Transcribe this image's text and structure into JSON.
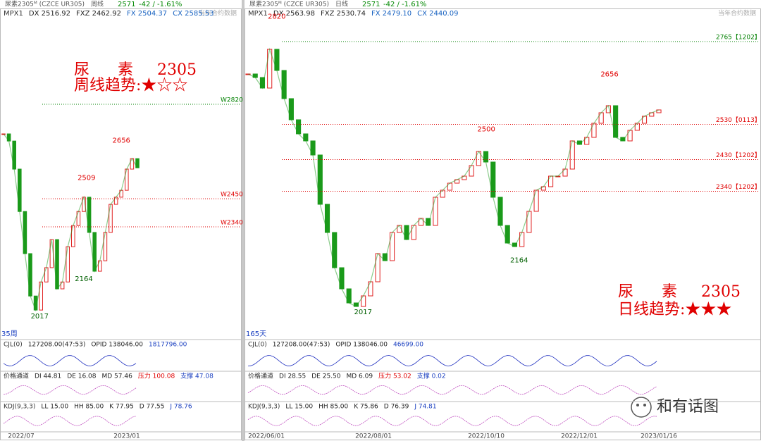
{
  "left": {
    "header": {
      "name": "尿素2305ᴹ (CZCE UR305)",
      "period": "周线",
      "last": "2571",
      "change": "-42 / -1.61%",
      "note": "当年合约数据"
    },
    "mpx": [
      "MPX1",
      "DX 2516.92",
      "FXZ 2462.92",
      "FX 2504.37",
      "CX 2585.53"
    ],
    "title": [
      "尿",
      "素",
      "2305"
    ],
    "trend": "周线趋势:★☆☆",
    "ylim": [
      1904,
      3151
    ],
    "closes": [
      2704,
      2676,
      2566,
      2400,
      2235,
      2069,
      2014,
      2124,
      2180,
      2290,
      2097,
      2124,
      2262,
      2345,
      2400,
      2456,
      2318,
      2166,
      2207,
      2318,
      2428,
      2456,
      2483,
      2566,
      2607,
      2571
    ],
    "levels": [
      {
        "value": 2820,
        "label": "W2820"
      },
      {
        "value": 2450,
        "label": "W2450"
      },
      {
        "value": 2340,
        "label": "W2340"
      }
    ],
    "annotations": [
      2656,
      2509,
      2164,
      2017
    ],
    "count": "35周",
    "indicators": [
      [
        "CJL(0)",
        "127208.00(47:53)",
        "OPID 138046.00",
        "1817796.00"
      ],
      [
        "价格通道",
        "DI 44.81",
        "DE 16.08",
        "MD 57.46",
        "压力 100.08",
        "支撑 47.08"
      ],
      [
        "KDJ(9,3,3)",
        "LL 15.00",
        "HH 85.00",
        "K 77.95",
        "D 77.55",
        "J 78.76"
      ]
    ],
    "xlabels": [
      "2022/07",
      "2023/01"
    ]
  },
  "right": {
    "header": {
      "name": "尿素2305ᴹ (CZCE UR305)",
      "period": "日线",
      "last": "2571",
      "change": "-42 / -1.61%",
      "note": "当年合约数据"
    },
    "mpx": [
      "MPX1",
      "DX 2563.98",
      "FXZ 2530.74",
      "FX 2479.10",
      "CX 2440.09"
    ],
    "title": [
      "尿",
      "素",
      "2305"
    ],
    "trend": "日线趋势:★★★",
    "ylim": [
      1923,
      2827
    ],
    "closes": [
      2673,
      2663,
      2633,
      2743,
      2683,
      2603,
      2543,
      2503,
      2483,
      2443,
      2303,
      2223,
      2123,
      2063,
      2023,
      2013,
      2043,
      2083,
      2163,
      2143,
      2223,
      2243,
      2203,
      2243,
      2263,
      2243,
      2323,
      2343,
      2363,
      2373,
      2383,
      2413,
      2453,
      2423,
      2323,
      2243,
      2193,
      2183,
      2223,
      2283,
      2343,
      2353,
      2383,
      2383,
      2403,
      2483,
      2473,
      2493,
      2533,
      2563,
      2583,
      2493,
      2483,
      2513,
      2533,
      2553,
      2563,
      2571
    ],
    "levels": [
      {
        "value": 2765,
        "label": "2765【1202】"
      },
      {
        "value": 2530,
        "label": "2530【0113】"
      },
      {
        "value": 2430,
        "label": "2430【1202】"
      },
      {
        "value": 2340,
        "label": "2340【1202】"
      }
    ],
    "annotations": [
      2820,
      2500,
      2656,
      2164,
      2017
    ],
    "count": "165天",
    "indicators": [
      [
        "CJL(0)",
        "127208.00(47:53)",
        "OPID 138046.00",
        "46699.00"
      ],
      [
        "价格通道",
        "DI 28.55",
        "DE 25.50",
        "MD 6.09",
        "压力 53.02",
        "支撑 0.02"
      ],
      [
        "KDJ(9,3,3)",
        "LL 15.00",
        "HH 85.00",
        "K 75.86",
        "D 76.39",
        "J 74.81"
      ]
    ],
    "xlabels": [
      "2022/06/01",
      "2022/08/01",
      "2022/10/10",
      "2022/12/01",
      "2023/01/16"
    ]
  },
  "watermark": "和有话图"
}
